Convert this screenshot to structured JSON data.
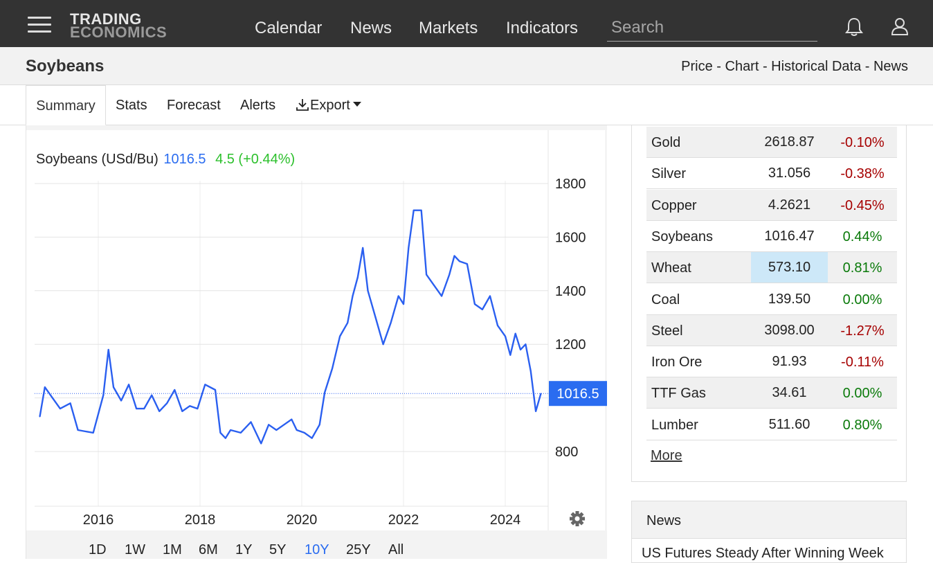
{
  "nav": {
    "logo_line1": "TRADING",
    "logo_line2": "ECONOMICS",
    "links": [
      "Calendar",
      "News",
      "Markets",
      "Indicators"
    ],
    "search_placeholder": "Search"
  },
  "header": {
    "title": "Soybeans",
    "sublinks": "Price - Chart - Historical Data - News"
  },
  "tabs": {
    "summary": "Summary",
    "stats": "Stats",
    "forecast": "Forecast",
    "alerts": "Alerts",
    "export": "Export"
  },
  "chart_header": {
    "name": "Soybeans (USd/Bu)",
    "price": "1016.5",
    "change": "4.5 (+0.44%)",
    "last_tag": "1016.5"
  },
  "chart_data": {
    "type": "line",
    "title": "Soybeans (USd/Bu)",
    "series": [
      {
        "name": "Soybeans",
        "color": "#2a5ff0",
        "x": [
          2014.85,
          2014.95,
          2015.1,
          2015.25,
          2015.45,
          2015.6,
          2015.75,
          2015.9,
          2016.1,
          2016.2,
          2016.3,
          2016.45,
          2016.6,
          2016.75,
          2016.9,
          2017.05,
          2017.2,
          2017.35,
          2017.5,
          2017.65,
          2017.8,
          2017.95,
          2018.1,
          2018.3,
          2018.4,
          2018.5,
          2018.6,
          2018.8,
          2019.0,
          2019.2,
          2019.35,
          2019.5,
          2019.65,
          2019.8,
          2019.9,
          2020.05,
          2020.2,
          2020.35,
          2020.45,
          2020.6,
          2020.75,
          2020.9,
          2021.0,
          2021.1,
          2021.2,
          2021.3,
          2021.45,
          2021.6,
          2021.75,
          2021.9,
          2022.0,
          2022.1,
          2022.2,
          2022.35,
          2022.45,
          2022.6,
          2022.75,
          2022.9,
          2023.0,
          2023.1,
          2023.25,
          2023.4,
          2023.55,
          2023.7,
          2023.85,
          2024.0,
          2024.1,
          2024.2,
          2024.3,
          2024.4,
          2024.5,
          2024.6,
          2024.7
        ],
        "values": [
          930,
          1040,
          1000,
          960,
          980,
          880,
          875,
          870,
          1010,
          1180,
          1040,
          990,
          1050,
          960,
          960,
          1010,
          950,
          980,
          1030,
          950,
          970,
          960,
          1050,
          1030,
          870,
          850,
          880,
          870,
          910,
          830,
          900,
          880,
          900,
          920,
          880,
          870,
          850,
          900,
          1020,
          1110,
          1230,
          1280,
          1380,
          1450,
          1560,
          1400,
          1300,
          1200,
          1280,
          1380,
          1350,
          1560,
          1700,
          1700,
          1460,
          1420,
          1380,
          1460,
          1530,
          1510,
          1500,
          1350,
          1330,
          1380,
          1270,
          1230,
          1160,
          1240,
          1180,
          1200,
          1100,
          950,
          1016.5
        ]
      }
    ],
    "xlabel": "",
    "ylabel": "",
    "xlim": [
      2014.85,
      2025.1
    ],
    "ylim": [
      600,
      1850
    ],
    "x_ticks": [
      2016,
      2018,
      2020,
      2022,
      2024
    ],
    "y_ticks": [
      800,
      1200,
      1400,
      1600,
      1800
    ],
    "grid": true,
    "last_value_line": 1016.5
  },
  "ranges": [
    "1D",
    "1W",
    "1M",
    "6M",
    "1Y",
    "5Y",
    "10Y",
    "25Y",
    "All"
  ],
  "active_range": "10Y",
  "markets": [
    {
      "name": "Gold",
      "price": "2618.87",
      "change": "-0.10%"
    },
    {
      "name": "Silver",
      "price": "31.056",
      "change": "-0.38%"
    },
    {
      "name": "Copper",
      "price": "4.2621",
      "change": "-0.45%"
    },
    {
      "name": "Soybeans",
      "price": "1016.47",
      "change": "0.44%"
    },
    {
      "name": "Wheat",
      "price": "573.10",
      "change": "0.81%"
    },
    {
      "name": "Coal",
      "price": "139.50",
      "change": "0.00%"
    },
    {
      "name": "Steel",
      "price": "3098.00",
      "change": "-1.27%"
    },
    {
      "name": "Iron Ore",
      "price": "91.93",
      "change": "-0.11%"
    },
    {
      "name": "TTF Gas",
      "price": "34.61",
      "change": "0.00%"
    },
    {
      "name": "Lumber",
      "price": "511.60",
      "change": "0.80%"
    }
  ],
  "more_label": "More",
  "news": {
    "heading": "News",
    "first_item": "US Futures Steady After Winning Week"
  },
  "colors": {
    "navbar": "#333333",
    "accent_blue": "#2a6cf0",
    "positive": "#0a7a0a",
    "negative": "#a60000",
    "highlight": "#cde8f8"
  },
  "icons": {
    "menu": "hamburger-icon",
    "bell": "bell-icon",
    "user": "user-icon",
    "export": "download-icon",
    "settings": "gear-icon"
  }
}
